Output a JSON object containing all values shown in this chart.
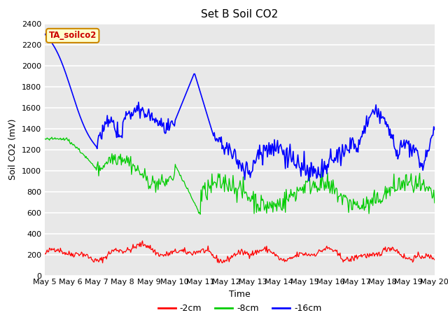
{
  "title": "Set B Soil CO2",
  "xlabel": "Time",
  "ylabel": "Soil CO2 (mV)",
  "ylim": [
    0,
    2400
  ],
  "yticks": [
    0,
    200,
    400,
    600,
    800,
    1000,
    1200,
    1400,
    1600,
    1800,
    2000,
    2200,
    2400
  ],
  "xtick_labels": [
    "May 5",
    "May 6",
    "May 7",
    "May 8",
    "May 9",
    "May 10",
    "May 11",
    "May 12",
    "May 13",
    "May 14",
    "May 15",
    "May 16",
    "May 17",
    "May 18",
    "May 19",
    "May 20"
  ],
  "legend_labels": [
    "-2cm",
    "-8cm",
    "-16cm"
  ],
  "legend_colors": [
    "#ff0000",
    "#00cc00",
    "#0000ff"
  ],
  "annotation_text": "TA_soilco2",
  "annotation_bg": "#ffffcc",
  "annotation_border": "#cc8800",
  "fig_bg": "#ffffff",
  "plot_bg": "#e8e8e8",
  "grid_color": "#ffffff",
  "title_fontsize": 11,
  "axis_fontsize": 9,
  "tick_fontsize": 8,
  "n_points": 500
}
